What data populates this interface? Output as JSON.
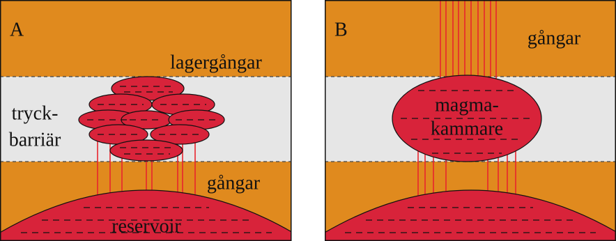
{
  "panels": [
    {
      "label": "A",
      "texts": [
        "lagergångar",
        "tryck-",
        "barriär",
        "gångar",
        "reservoir"
      ]
    },
    {
      "label": "B",
      "texts": [
        "gångar",
        "magma-",
        "kammare"
      ]
    }
  ]
}
